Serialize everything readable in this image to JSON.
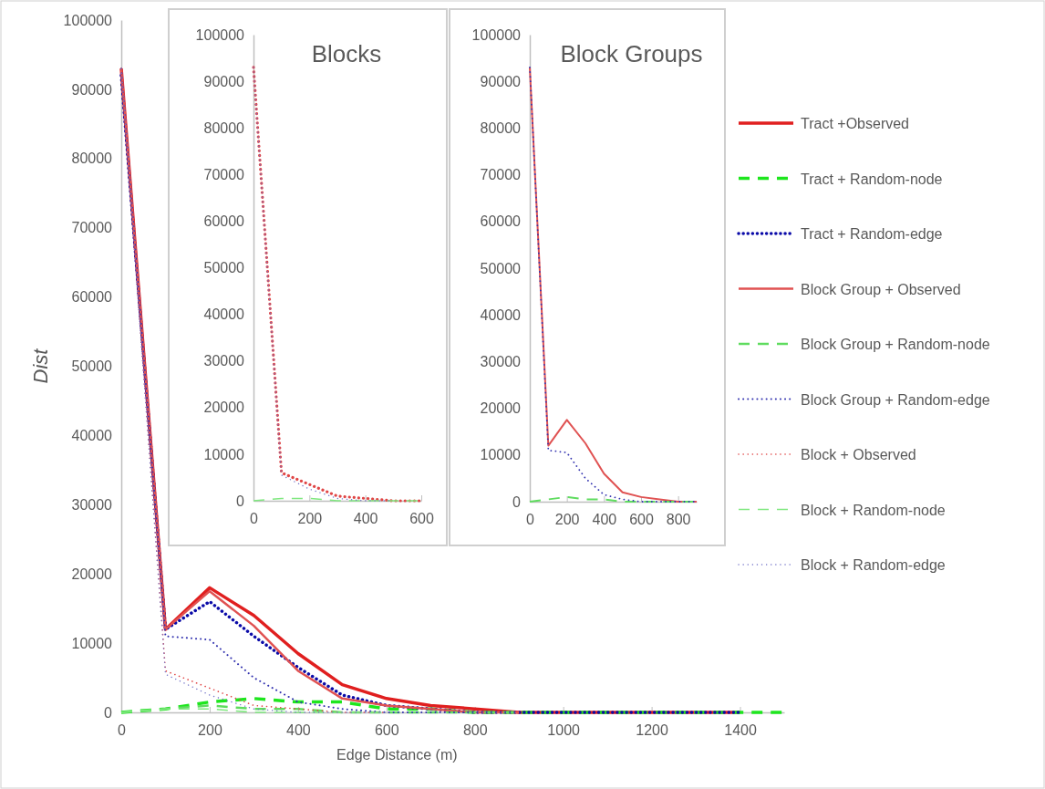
{
  "chart_data": [
    {
      "type": "line",
      "xlabel": "Edge Distance (m)",
      "ylabel": "Dist",
      "xlim": [
        0,
        1500
      ],
      "ylim": [
        0,
        100000
      ],
      "xticks": [
        0,
        200,
        400,
        600,
        800,
        1000,
        1200,
        1400
      ],
      "yticks": [
        0,
        10000,
        20000,
        30000,
        40000,
        50000,
        60000,
        70000,
        80000,
        90000,
        100000
      ],
      "legend": "right",
      "series": [
        {
          "name": "Tract +Observed",
          "color": "#e01f1f",
          "line_style": "solid",
          "x": [
            0,
            100,
            200,
            300,
            400,
            500,
            600,
            700,
            800,
            900,
            1000,
            1100,
            1200,
            1300,
            1400
          ],
          "values": [
            93000,
            12000,
            18000,
            14000,
            8500,
            4000,
            2000,
            1000,
            500,
            0,
            0,
            0,
            0,
            0,
            0
          ]
        },
        {
          "name": "Tract + Random-node",
          "color": "#1ee61e",
          "line_style": "dashed",
          "x": [
            0,
            100,
            200,
            300,
            400,
            500,
            600,
            700,
            800,
            900,
            1000,
            1100,
            1200,
            1300,
            1400,
            1500
          ],
          "values": [
            0,
            500,
            1500,
            2000,
            1500,
            1500,
            500,
            500,
            0,
            0,
            0,
            0,
            0,
            0,
            0,
            0
          ]
        },
        {
          "name": "Tract + Random-edge",
          "color": "#0a0aa8",
          "line_style": "dotted",
          "x": [
            0,
            100,
            200,
            300,
            400,
            500,
            600,
            700,
            800,
            900,
            1000,
            1100,
            1200,
            1300,
            1400
          ],
          "values": [
            92000,
            12000,
            16000,
            11000,
            6500,
            2500,
            1000,
            500,
            0,
            0,
            0,
            0,
            0,
            0,
            0
          ]
        },
        {
          "name": "Block Group + Observed",
          "color": "#e05252",
          "line_style": "solid",
          "x": [
            0,
            100,
            200,
            300,
            400,
            500,
            600,
            700,
            800,
            900
          ],
          "values": [
            93000,
            12000,
            17500,
            12500,
            6000,
            2000,
            1000,
            500,
            0,
            0
          ]
        },
        {
          "name": "Block Group + Random-node",
          "color": "#5fdc5f",
          "line_style": "dashed",
          "x": [
            0,
            100,
            200,
            300,
            400,
            500,
            600,
            700,
            800,
            900
          ],
          "values": [
            0,
            500,
            1000,
            500,
            500,
            0,
            0,
            0,
            0,
            0
          ]
        },
        {
          "name": "Block Group + Random-edge",
          "color": "#3434b0",
          "line_style": "dotted",
          "x": [
            0,
            100,
            200,
            300,
            400,
            500,
            600,
            700,
            800,
            900
          ],
          "values": [
            93000,
            11000,
            10500,
            5000,
            1500,
            500,
            0,
            0,
            0,
            0
          ]
        },
        {
          "name": "Block + Observed",
          "color": "#e04646",
          "line_style": "dotted",
          "x": [
            0,
            100,
            200,
            300,
            400,
            500,
            600
          ],
          "values": [
            93000,
            6000,
            3500,
            1000,
            500,
            0,
            0
          ]
        },
        {
          "name": "Block + Random-node",
          "color": "#7fe87f",
          "line_style": "dashed",
          "x": [
            0,
            100,
            200,
            300,
            400,
            500,
            600
          ],
          "values": [
            0,
            500,
            500,
            0,
            0,
            0,
            0
          ]
        },
        {
          "name": "Block + Random-edge",
          "color": "#7272c8",
          "line_style": "dotted",
          "x": [
            0,
            100,
            200,
            300,
            400,
            500,
            600
          ],
          "values": [
            93000,
            5500,
            2500,
            500,
            0,
            0,
            0
          ]
        }
      ]
    },
    {
      "type": "line",
      "title": "Blocks",
      "xlim": [
        0,
        600
      ],
      "ylim": [
        0,
        100000
      ],
      "xticks": [
        0,
        200,
        400,
        600
      ],
      "yticks": [
        0,
        10000,
        20000,
        30000,
        40000,
        50000,
        60000,
        70000,
        80000,
        90000,
        100000
      ],
      "series": [
        {
          "color": "#e04646",
          "line_style": "dotted",
          "x": [
            0,
            100,
            200,
            300,
            400,
            500,
            600
          ],
          "values": [
            93000,
            6000,
            3500,
            1000,
            500,
            0,
            0
          ]
        },
        {
          "color": "#7fe87f",
          "line_style": "dashed",
          "x": [
            0,
            100,
            200,
            300,
            400,
            500,
            600
          ],
          "values": [
            0,
            500,
            500,
            0,
            0,
            0,
            0
          ]
        },
        {
          "color": "#7272c8",
          "line_style": "dotted",
          "x": [
            0,
            100,
            200,
            300,
            400,
            500
          ],
          "values": [
            93000,
            5500,
            2500,
            500,
            0,
            0
          ]
        }
      ]
    },
    {
      "type": "line",
      "title": "Block Groups",
      "xlim": [
        0,
        900
      ],
      "ylim": [
        0,
        100000
      ],
      "xticks": [
        0,
        200,
        400,
        600,
        800
      ],
      "yticks": [
        0,
        10000,
        20000,
        30000,
        40000,
        50000,
        60000,
        70000,
        80000,
        90000,
        100000
      ],
      "series": [
        {
          "color": "#e05252",
          "line_style": "solid",
          "x": [
            0,
            100,
            200,
            300,
            400,
            500,
            600,
            700,
            800,
            900
          ],
          "values": [
            93000,
            12000,
            17500,
            12500,
            6000,
            2000,
            1000,
            500,
            0,
            0
          ]
        },
        {
          "color": "#5fdc5f",
          "line_style": "dashed",
          "x": [
            0,
            100,
            200,
            300,
            400,
            500,
            600,
            700,
            800,
            900
          ],
          "values": [
            0,
            500,
            1000,
            500,
            500,
            0,
            0,
            0,
            0,
            0
          ]
        },
        {
          "color": "#3434b0",
          "line_style": "dotted",
          "x": [
            0,
            100,
            200,
            300,
            400,
            500,
            600,
            700,
            800,
            900
          ],
          "values": [
            93000,
            11000,
            10500,
            5000,
            1500,
            500,
            0,
            0,
            0,
            0
          ]
        }
      ]
    }
  ]
}
